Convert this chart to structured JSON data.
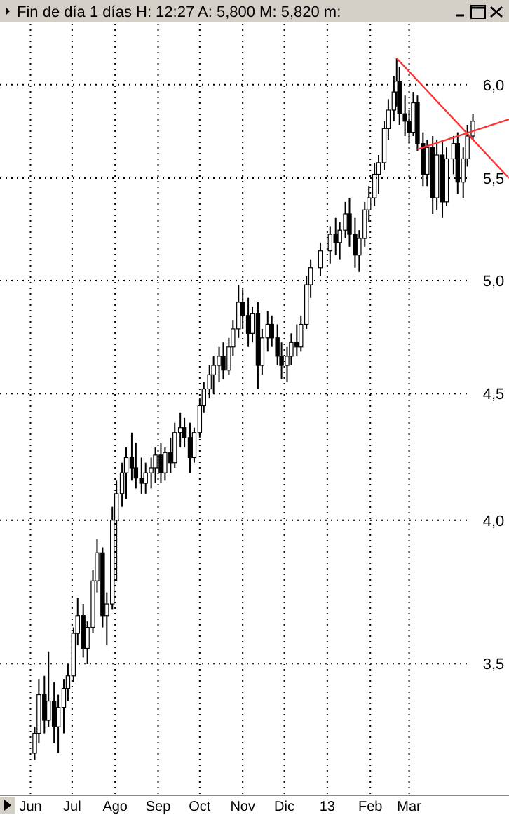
{
  "chart_data": {
    "type": "candlestick",
    "title": "Fin de día 1 días  H: 12:27  A: 5,800  M: 5,820  m:",
    "log": "y",
    "grid": true,
    "xlim": [
      "2012-05-10",
      "2013-05-12"
    ],
    "xticks": [
      {
        "value": "2012-06-01",
        "label": "Jun"
      },
      {
        "value": "2012-07-01",
        "label": "Jul"
      },
      {
        "value": "2012-08-01",
        "label": "Ago"
      },
      {
        "value": "2012-09-01",
        "label": "Sep"
      },
      {
        "value": "2012-10-01",
        "label": "Oct"
      },
      {
        "value": "2012-11-01",
        "label": "Nov"
      },
      {
        "value": "2012-12-01",
        "label": "Dic"
      },
      {
        "value": "2013-01-01",
        "label": "13"
      },
      {
        "value": "2013-02-01",
        "label": "Feb"
      },
      {
        "value": "2013-03-01",
        "label": "Mar"
      }
    ],
    "ylim": [
      3.1,
      6.35
    ],
    "yticks": [
      {
        "value": 3.5,
        "label": "3,5"
      },
      {
        "value": 4,
        "label": "4,0"
      },
      {
        "value": 4.5,
        "label": "4,5"
      },
      {
        "value": 5,
        "label": "5,0"
      },
      {
        "value": 5.5,
        "label": "5,5"
      },
      {
        "value": 6,
        "label": "6,0"
      }
    ],
    "x": [
      "2012-06-04",
      "2012-06-07",
      "2012-06-11",
      "2012-06-14",
      "2012-06-18",
      "2012-06-21",
      "2012-06-25",
      "2012-06-28",
      "2012-07-02",
      "2012-07-05",
      "2012-07-09",
      "2012-07-12",
      "2012-07-16",
      "2012-07-19",
      "2012-07-23",
      "2012-07-26",
      "2012-07-30",
      "2012-08-02",
      "2012-08-06",
      "2012-08-09",
      "2012-08-13",
      "2012-08-16",
      "2012-08-20",
      "2012-08-23",
      "2012-08-27",
      "2012-08-30",
      "2012-09-03",
      "2012-09-06",
      "2012-09-10",
      "2012-09-13",
      "2012-09-17",
      "2012-09-20",
      "2012-09-24",
      "2012-09-27",
      "2012-10-01",
      "2012-10-04",
      "2012-10-08",
      "2012-10-11",
      "2012-10-15",
      "2012-10-18",
      "2012-10-22",
      "2012-10-25",
      "2012-10-29",
      "2012-11-01",
      "2012-11-05",
      "2012-11-08",
      "2012-11-12",
      "2012-11-15",
      "2012-11-19",
      "2012-11-22",
      "2012-11-26",
      "2012-11-29",
      "2012-12-03",
      "2012-12-06",
      "2012-12-10",
      "2012-12-13",
      "2012-12-17",
      "2012-12-20",
      "2012-12-27",
      "2013-01-03",
      "2013-01-07",
      "2013-01-10",
      "2013-01-14",
      "2013-01-17",
      "2013-01-21",
      "2013-01-24",
      "2013-01-28",
      "2013-01-31",
      "2013-02-04",
      "2013-02-07",
      "2013-02-11",
      "2013-02-14",
      "2013-02-18",
      "2013-02-20",
      "2013-02-22",
      "2013-02-26",
      "2013-03-01",
      "2013-03-04",
      "2013-03-07",
      "2013-03-11",
      "2013-03-14",
      "2013-03-18",
      "2013-03-21",
      "2013-03-25",
      "2013-03-28",
      "2013-04-02",
      "2013-04-05",
      "2013-04-09",
      "2013-04-12",
      "2013-04-16"
    ],
    "ohlc": [
      [
        3.22,
        3.3,
        3.2,
        3.28
      ],
      [
        3.28,
        3.45,
        3.25,
        3.4
      ],
      [
        3.4,
        3.46,
        3.28,
        3.32
      ],
      [
        3.32,
        3.54,
        3.3,
        3.38
      ],
      [
        3.38,
        3.44,
        3.25,
        3.3
      ],
      [
        3.3,
        3.4,
        3.22,
        3.36
      ],
      [
        3.36,
        3.45,
        3.28,
        3.42
      ],
      [
        3.42,
        3.5,
        3.38,
        3.46
      ],
      [
        3.46,
        3.62,
        3.44,
        3.6
      ],
      [
        3.6,
        3.72,
        3.56,
        3.66
      ],
      [
        3.66,
        3.7,
        3.52,
        3.55
      ],
      [
        3.55,
        3.64,
        3.5,
        3.62
      ],
      [
        3.62,
        3.82,
        3.6,
        3.78
      ],
      [
        3.78,
        3.93,
        3.74,
        3.88
      ],
      [
        3.88,
        3.9,
        3.62,
        3.66
      ],
      [
        3.66,
        3.74,
        3.56,
        3.7
      ],
      [
        3.7,
        4.05,
        3.68,
        4.0
      ],
      [
        4.0,
        4.15,
        3.78,
        4.1
      ],
      [
        4.1,
        4.22,
        4.05,
        4.18
      ],
      [
        4.18,
        4.28,
        4.08,
        4.24
      ],
      [
        4.24,
        4.34,
        4.15,
        4.2
      ],
      [
        4.2,
        4.3,
        4.12,
        4.16
      ],
      [
        4.16,
        4.24,
        4.1,
        4.14
      ],
      [
        4.14,
        4.22,
        4.1,
        4.18
      ],
      [
        4.18,
        4.24,
        4.12,
        4.2
      ],
      [
        4.2,
        4.28,
        4.14,
        4.25
      ],
      [
        4.25,
        4.3,
        4.14,
        4.18
      ],
      [
        4.18,
        4.28,
        4.15,
        4.26
      ],
      [
        4.26,
        4.32,
        4.18,
        4.22
      ],
      [
        4.22,
        4.38,
        4.2,
        4.34
      ],
      [
        4.34,
        4.42,
        4.28,
        4.36
      ],
      [
        4.36,
        4.4,
        4.28,
        4.32
      ],
      [
        4.32,
        4.38,
        4.18,
        4.24
      ],
      [
        4.24,
        4.36,
        4.22,
        4.34
      ],
      [
        4.34,
        4.48,
        4.32,
        4.45
      ],
      [
        4.45,
        4.55,
        4.42,
        4.52
      ],
      [
        4.52,
        4.62,
        4.48,
        4.58
      ],
      [
        4.58,
        4.66,
        4.5,
        4.62
      ],
      [
        4.62,
        4.7,
        4.55,
        4.66
      ],
      [
        4.66,
        4.72,
        4.56,
        4.6
      ],
      [
        4.6,
        4.74,
        4.58,
        4.7
      ],
      [
        4.7,
        4.82,
        4.66,
        4.78
      ],
      [
        4.78,
        4.98,
        4.74,
        4.9
      ],
      [
        4.9,
        4.96,
        4.78,
        4.84
      ],
      [
        4.84,
        4.92,
        4.7,
        4.76
      ],
      [
        4.76,
        4.88,
        4.72,
        4.85
      ],
      [
        4.85,
        4.9,
        4.52,
        4.62
      ],
      [
        4.62,
        4.78,
        4.58,
        4.74
      ],
      [
        4.74,
        4.86,
        4.68,
        4.8
      ],
      [
        4.8,
        4.84,
        4.7,
        4.74
      ],
      [
        4.74,
        4.8,
        4.62,
        4.66
      ],
      [
        4.66,
        4.72,
        4.56,
        4.62
      ],
      [
        4.62,
        4.7,
        4.55,
        4.66
      ],
      [
        4.66,
        4.76,
        4.62,
        4.72
      ],
      [
        4.72,
        4.8,
        4.66,
        4.7
      ],
      [
        4.7,
        4.84,
        4.68,
        4.8
      ],
      [
        4.8,
        5.02,
        4.78,
        4.98
      ],
      [
        4.98,
        5.1,
        4.92,
        5.06
      ],
      [
        5.06,
        5.18,
        5.02,
        5.14
      ],
      [
        5.14,
        5.26,
        5.08,
        5.22
      ],
      [
        5.22,
        5.3,
        5.12,
        5.18
      ],
      [
        5.18,
        5.28,
        5.1,
        5.24
      ],
      [
        5.24,
        5.38,
        5.2,
        5.32
      ],
      [
        5.32,
        5.4,
        5.16,
        5.22
      ],
      [
        5.22,
        5.3,
        5.06,
        5.12
      ],
      [
        5.12,
        5.24,
        5.04,
        5.2
      ],
      [
        5.2,
        5.38,
        5.16,
        5.34
      ],
      [
        5.34,
        5.46,
        5.28,
        5.4
      ],
      [
        5.4,
        5.58,
        5.36,
        5.52
      ],
      [
        5.52,
        5.62,
        5.42,
        5.58
      ],
      [
        5.58,
        5.8,
        5.54,
        5.76
      ],
      [
        5.76,
        5.92,
        5.7,
        5.86
      ],
      [
        5.86,
        6.05,
        5.8,
        5.96
      ],
      [
        5.96,
        6.15,
        5.88,
        6.02
      ],
      [
        6.02,
        6.1,
        5.78,
        5.84
      ],
      [
        5.84,
        5.94,
        5.72,
        5.8
      ],
      [
        5.8,
        5.86,
        5.68,
        5.74
      ],
      [
        5.74,
        5.96,
        5.72,
        5.9
      ],
      [
        5.9,
        5.94,
        5.64,
        5.68
      ],
      [
        5.68,
        5.74,
        5.46,
        5.52
      ],
      [
        5.52,
        5.7,
        5.46,
        5.66
      ],
      [
        5.66,
        5.72,
        5.32,
        5.4
      ],
      [
        5.4,
        5.7,
        5.34,
        5.62
      ],
      [
        5.62,
        5.7,
        5.3,
        5.38
      ],
      [
        5.38,
        5.66,
        5.36,
        5.6
      ],
      [
        5.6,
        5.72,
        5.52,
        5.68
      ],
      [
        5.68,
        5.74,
        5.42,
        5.48
      ],
      [
        5.48,
        5.66,
        5.4,
        5.6
      ],
      [
        5.6,
        5.78,
        5.56,
        5.72
      ],
      [
        5.72,
        5.84,
        5.7,
        5.8
      ]
    ],
    "series": [
      {
        "type": "line",
        "color": "#ff3030",
        "x": [
          "2013-02-20",
          "2013-05-12"
        ],
        "values": [
          6.15,
          5.5
        ]
      },
      {
        "type": "line",
        "color": "#ff3030",
        "x": [
          "2013-03-07",
          "2013-05-12"
        ],
        "values": [
          5.65,
          5.81
        ]
      }
    ]
  }
}
